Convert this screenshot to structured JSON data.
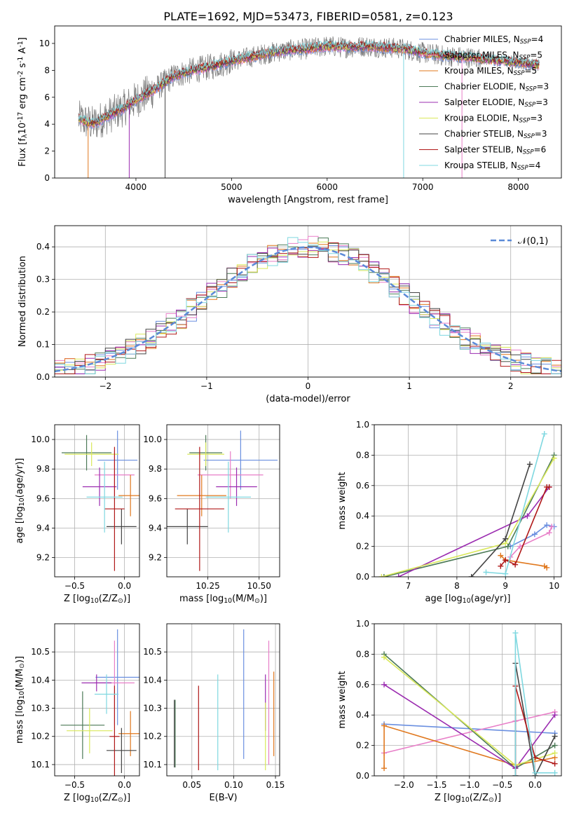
{
  "figure_title": "PLATE=1692, MJD=53473, FIBERID=0581, z=0.123",
  "colors": {
    "Chabrier MILES": "#6a8fe0",
    "Salpeter MILES": "#e87fc8",
    "Kroupa MILES": "#e0781e",
    "Chabrier ELODIE": "#4c7a57",
    "Salpeter ELODIE": "#9b2cb0",
    "Kroupa ELODIE": "#d9e85a",
    "Chabrier STELIB": "#444444",
    "Salpeter STELIB": "#b01818",
    "Kroupa STELIB": "#7fd8e0",
    "data": "#777777",
    "gauss": "#5b8ad8",
    "grid": "#b0b0b0"
  },
  "chart_data": [
    {
      "type": "line",
      "xlabel": "wavelength [Angstrom, rest frame]",
      "ylabel": "Flux [f$_\\lambda$10$^{-17}$ erg cm$^{-2}$ s$^{-1}$ A$^{-1}$]",
      "xlim": [
        3150,
        8450
      ],
      "ylim": [
        0,
        11.3
      ],
      "xticks": [
        "4000",
        "5000",
        "6000",
        "7000",
        "8000"
      ],
      "yticks": [
        "0",
        "2",
        "4",
        "6",
        "8",
        "10"
      ],
      "legend": [
        {
          "label": "Chabrier MILES, N$_{SSP}$=4",
          "color": "#6a8fe0"
        },
        {
          "label": "Salpeter MILES, N$_{SSP}$=5",
          "color": "#e87fc8"
        },
        {
          "label": "Kroupa MILES, N$_{SSP}$=5",
          "color": "#e0781e"
        },
        {
          "label": "Chabrier ELODIE, N$_{SSP}$=3",
          "color": "#4c7a57"
        },
        {
          "label": "Salpeter ELODIE, N$_{SSP}$=3",
          "color": "#9b2cb0"
        },
        {
          "label": "Kroupa ELODIE, N$_{SSP}$=3",
          "color": "#d9e85a"
        },
        {
          "label": "Chabrier STELIB, N$_{SSP}$=3",
          "color": "#444444"
        },
        {
          "label": "Salpeter STELIB, N$_{SSP}$=6",
          "color": "#b01818"
        },
        {
          "label": "Kroupa STELIB, N$_{SSP}$=4",
          "color": "#7fd8e0"
        }
      ],
      "continuum": [
        [
          3400,
          4.4
        ],
        [
          3550,
          4.0
        ],
        [
          3700,
          4.6
        ],
        [
          3850,
          5.1
        ],
        [
          4000,
          5.8
        ],
        [
          4200,
          6.6
        ],
        [
          4400,
          7.6
        ],
        [
          4600,
          8.0
        ],
        [
          4800,
          8.3
        ],
        [
          5000,
          8.7
        ],
        [
          5200,
          9.0
        ],
        [
          5400,
          9.3
        ],
        [
          5600,
          9.5
        ],
        [
          5800,
          9.6
        ],
        [
          6000,
          9.8
        ],
        [
          6200,
          9.7
        ],
        [
          6400,
          9.8
        ],
        [
          6600,
          9.7
        ],
        [
          6800,
          9.6
        ],
        [
          7000,
          9.3
        ],
        [
          7200,
          9.1
        ],
        [
          7400,
          9.0
        ],
        [
          7600,
          8.9
        ],
        [
          7800,
          8.7
        ],
        [
          8000,
          8.6
        ],
        [
          8200,
          8.4
        ]
      ],
      "dips": [
        [
          3500,
          0.0
        ],
        [
          3930,
          0.0
        ],
        [
          4305,
          0.0
        ],
        [
          6800,
          0.0
        ],
        [
          7410,
          0.0
        ]
      ]
    },
    {
      "type": "step",
      "xlabel": "(data-model)/error",
      "ylabel": "Normed distribution",
      "xlim": [
        -2.5,
        2.5
      ],
      "ylim": [
        0,
        0.465
      ],
      "xticks": [
        "−2",
        "−1",
        "0",
        "1",
        "2"
      ],
      "yticks": [
        "0.0",
        "0.1",
        "0.2",
        "0.3",
        "0.4"
      ],
      "legend": [
        {
          "label": "$\\mathcal{N}(0,1)$",
          "color": "#5b8ad8"
        }
      ],
      "gaussian": {
        "mean": 0,
        "sigma": 1
      },
      "bin_width": 0.1
    },
    {
      "type": "scatter",
      "xlabel": "Z [log$_{10}$(Z/Z$_\\odot$)]",
      "ylabel": "age  [log$_{10}$(age/yr)]",
      "xlim": [
        -0.7,
        0.15
      ],
      "ylim": [
        9.07,
        10.1
      ],
      "xticks": [
        "−0.5",
        "0.0"
      ],
      "yticks": [
        "9.2",
        "9.4",
        "9.6",
        "9.8",
        "10.0"
      ],
      "points": [
        {
          "model": "Chabrier MILES",
          "x": -0.07,
          "xerr": 0.2,
          "y": 9.86,
          "yerr": 0.2
        },
        {
          "model": "Salpeter MILES",
          "x": -0.1,
          "xerr": 0.2,
          "y": 9.76,
          "yerr": 0.16
        },
        {
          "model": "Kroupa MILES",
          "x": 0.06,
          "xerr": 0.12,
          "y": 9.62,
          "yerr": 0.14
        },
        {
          "model": "Chabrier ELODIE",
          "x": -0.38,
          "xerr": 0.25,
          "y": 9.91,
          "yerr": 0.12
        },
        {
          "model": "Salpeter ELODIE",
          "x": -0.25,
          "xerr": 0.17,
          "y": 9.68,
          "yerr": 0.13
        },
        {
          "model": "Kroupa ELODIE",
          "x": -0.33,
          "xerr": 0.27,
          "y": 9.9,
          "yerr": 0.08
        },
        {
          "model": "Chabrier STELIB",
          "x": -0.03,
          "xerr": 0.15,
          "y": 9.41,
          "yerr": 0.12
        },
        {
          "model": "Salpeter STELIB",
          "x": -0.1,
          "xerr": 0.1,
          "y": 9.53,
          "yerr": 0.42
        },
        {
          "model": "Kroupa STELIB",
          "x": -0.2,
          "xerr": 0.18,
          "y": 9.61,
          "yerr": 0.24
        }
      ]
    },
    {
      "type": "scatter",
      "xlabel": "mass [log$_{10}$(M/M$_\\odot$)]",
      "ylabel": "",
      "xlim": [
        10.05,
        10.6
      ],
      "ylim": [
        9.07,
        10.1
      ],
      "xticks": [
        "10.25",
        "10.50"
      ],
      "yticks": [
        "9.2",
        "9.4",
        "9.6",
        "9.8",
        "10.0"
      ],
      "points": [
        {
          "model": "Chabrier MILES",
          "x": 10.41,
          "xerr": 0.18,
          "y": 9.86,
          "yerr": 0.2
        },
        {
          "model": "Salpeter MILES",
          "x": 10.36,
          "xerr": 0.16,
          "y": 9.76,
          "yerr": 0.16
        },
        {
          "model": "Kroupa MILES",
          "x": 10.22,
          "xerr": 0.12,
          "y": 9.62,
          "yerr": 0.14
        },
        {
          "model": "Chabrier ELODIE",
          "x": 10.24,
          "xerr": 0.08,
          "y": 9.91,
          "yerr": 0.12
        },
        {
          "model": "Salpeter ELODIE",
          "x": 10.39,
          "xerr": 0.1,
          "y": 9.68,
          "yerr": 0.13
        },
        {
          "model": "Kroupa ELODIE",
          "x": 10.24,
          "xerr": 0.09,
          "y": 9.9,
          "yerr": 0.08
        },
        {
          "model": "Chabrier STELIB",
          "x": 10.15,
          "xerr": 0.1,
          "y": 9.41,
          "yerr": 0.12
        },
        {
          "model": "Salpeter STELIB",
          "x": 10.21,
          "xerr": 0.12,
          "y": 9.53,
          "yerr": 0.42
        },
        {
          "model": "Kroupa STELIB",
          "x": 10.35,
          "xerr": 0.11,
          "y": 9.61,
          "yerr": 0.24
        }
      ]
    },
    {
      "type": "line",
      "xlabel": "age  [log$_{10}$(age/yr)]",
      "ylabel": "mass weight",
      "xlim": [
        6.3,
        10.15
      ],
      "ylim": [
        0,
        1.0
      ],
      "xticks": [
        "7",
        "8",
        "9",
        "10"
      ],
      "yticks": [
        "0.0",
        "0.2",
        "0.4",
        "0.6",
        "0.8",
        "1.0"
      ],
      "series": [
        {
          "model": "Chabrier MILES",
          "x": [
            9.1,
            9.6,
            9.85,
            10.0
          ],
          "y": [
            0.2,
            0.28,
            0.34,
            0.33
          ]
        },
        {
          "model": "Salpeter MILES",
          "x": [
            9.1,
            9.3,
            9.9,
            9.95
          ],
          "y": [
            0.13,
            0.2,
            0.29,
            0.33
          ]
        },
        {
          "model": "Kroupa MILES",
          "x": [
            8.9,
            9.0,
            9.8,
            9.85
          ],
          "y": [
            0.14,
            0.11,
            0.07,
            0.06
          ]
        },
        {
          "model": "Chabrier ELODIE",
          "x": [
            6.5,
            9.05,
            10.0
          ],
          "y": [
            0.0,
            0.2,
            0.8
          ]
        },
        {
          "model": "Salpeter ELODIE",
          "x": [
            6.8,
            9.45,
            9.9
          ],
          "y": [
            0.0,
            0.4,
            0.59
          ]
        },
        {
          "model": "Kroupa ELODIE",
          "x": [
            6.45,
            9.0,
            10.0
          ],
          "y": [
            0.0,
            0.22,
            0.78
          ]
        },
        {
          "model": "Chabrier STELIB",
          "x": [
            8.3,
            9.0,
            9.5
          ],
          "y": [
            0.0,
            0.25,
            0.74
          ]
        },
        {
          "model": "Salpeter STELIB",
          "x": [
            8.9,
            9.0,
            9.2,
            9.85,
            9.9
          ],
          "y": [
            0.07,
            0.11,
            0.08,
            0.59,
            0.59
          ]
        },
        {
          "model": "Kroupa STELIB",
          "x": [
            8.6,
            9.0,
            9.8
          ],
          "y": [
            0.03,
            0.02,
            0.94
          ]
        }
      ]
    },
    {
      "type": "scatter",
      "xlabel": "Z [log$_{10}$(Z/Z$_\\odot$)]",
      "ylabel": "mass [log$_{10}$(M/M$_\\odot$)]",
      "xlim": [
        -0.7,
        0.15
      ],
      "ylim": [
        10.06,
        10.6
      ],
      "xticks": [
        "−0.5",
        "0.0"
      ],
      "yticks": [
        "10.1",
        "10.2",
        "10.3",
        "10.4",
        "10.5"
      ],
      "points": [
        {
          "model": "Chabrier MILES",
          "x": -0.07,
          "xerr": 0.22,
          "y": 10.41,
          "yerr": 0.17
        },
        {
          "model": "Salpeter MILES",
          "x": -0.1,
          "xerr": 0.2,
          "y": 10.39,
          "yerr": 0.15
        },
        {
          "model": "Kroupa MILES",
          "x": 0.06,
          "xerr": 0.12,
          "y": 10.21,
          "yerr": 0.08
        },
        {
          "model": "Chabrier ELODIE",
          "x": -0.42,
          "xerr": 0.22,
          "y": 10.24,
          "yerr": 0.12
        },
        {
          "model": "Salpeter ELODIE",
          "x": -0.28,
          "xerr": 0.15,
          "y": 10.39,
          "yerr": 0.03
        },
        {
          "model": "Kroupa ELODIE",
          "x": -0.35,
          "xerr": 0.23,
          "y": 10.22,
          "yerr": 0.08
        },
        {
          "model": "Chabrier STELIB",
          "x": -0.03,
          "xerr": 0.15,
          "y": 10.15,
          "yerr": 0.08
        },
        {
          "model": "Salpeter STELIB",
          "x": -0.1,
          "xerr": 0.05,
          "y": 10.2,
          "yerr": 0.18
        },
        {
          "model": "Kroupa STELIB",
          "x": -0.18,
          "xerr": 0.12,
          "y": 10.35,
          "yerr": 0.07
        }
      ]
    },
    {
      "type": "scatter",
      "xlabel": "E(B-V)",
      "ylabel": "",
      "xlim": [
        0.02,
        0.155
      ],
      "ylim": [
        10.06,
        10.6
      ],
      "xticks": [
        "0.05",
        "0.10",
        "0.15"
      ],
      "yticks": [
        "10.1",
        "10.2",
        "10.3",
        "10.4",
        "10.5"
      ],
      "points": [
        {
          "model": "Chabrier MILES",
          "x": 0.112,
          "y": 10.35,
          "yerr": 0.23
        },
        {
          "model": "Salpeter MILES",
          "x": 0.142,
          "y": 10.32,
          "yerr": 0.22
        },
        {
          "model": "Kroupa MILES",
          "x": 0.148,
          "y": 10.28,
          "yerr": 0.15
        },
        {
          "model": "Chabrier ELODIE",
          "x": 0.03,
          "y": 10.21,
          "yerr": 0.12
        },
        {
          "model": "Salpeter ELODIE",
          "x": 0.138,
          "y": 10.32,
          "yerr": 0.1
        },
        {
          "model": "Kroupa ELODIE",
          "x": 0.138,
          "y": 10.2,
          "yerr": 0.12
        },
        {
          "model": "Chabrier STELIB",
          "x": 0.029,
          "y": 10.21,
          "yerr": 0.12
        },
        {
          "model": "Salpeter STELIB",
          "x": 0.058,
          "y": 10.23,
          "yerr": 0.15
        },
        {
          "model": "Kroupa STELIB",
          "x": 0.081,
          "y": 10.25,
          "yerr": 0.17
        }
      ]
    },
    {
      "type": "line",
      "xlabel": "Z [log$_{10}$(Z/Z$_\\odot$)]",
      "ylabel": "mass weight",
      "xlim": [
        -2.45,
        0.4
      ],
      "ylim": [
        0,
        1.0
      ],
      "xticks": [
        "−2.0",
        "−1.5",
        "−1.0",
        "−0.5",
        "0.0"
      ],
      "yticks": [
        "0.0",
        "0.2",
        "0.4",
        "0.6",
        "0.8",
        "1.0"
      ],
      "series": [
        {
          "model": "Chabrier MILES",
          "x": [
            -2.3,
            0.3
          ],
          "y": [
            0.34,
            0.28
          ]
        },
        {
          "model": "Salpeter MILES",
          "x": [
            -2.3,
            -0.3,
            0.3
          ],
          "y": [
            0.15,
            0.36,
            0.42
          ]
        },
        {
          "model": "Kroupa MILES",
          "x": [
            -2.3,
            -2.3,
            -0.3,
            0.3
          ],
          "y": [
            0.05,
            0.33,
            0.07,
            0.12
          ]
        },
        {
          "model": "Chabrier ELODIE",
          "x": [
            -2.3,
            -0.3,
            0.3
          ],
          "y": [
            0.8,
            0.05,
            0.2
          ]
        },
        {
          "model": "Salpeter ELODIE",
          "x": [
            -2.3,
            -0.3,
            0.3
          ],
          "y": [
            0.6,
            0.05,
            0.4
          ]
        },
        {
          "model": "Kroupa ELODIE",
          "x": [
            -2.3,
            -0.3,
            0.3
          ],
          "y": [
            0.78,
            0.07,
            0.15
          ]
        },
        {
          "model": "Chabrier STELIB",
          "x": [
            -0.3,
            -0.3,
            0.0,
            0.3
          ],
          "y": [
            0.0,
            0.74,
            0.0,
            0.26
          ]
        },
        {
          "model": "Salpeter STELIB",
          "x": [
            -0.3,
            -0.3,
            0.0,
            0.3
          ],
          "y": [
            0.0,
            0.59,
            0.12,
            0.08
          ]
        },
        {
          "model": "Kroupa STELIB",
          "x": [
            -0.3,
            -0.3,
            0.0,
            0.3
          ],
          "y": [
            0.0,
            0.94,
            0.02,
            0.02
          ]
        }
      ]
    }
  ]
}
